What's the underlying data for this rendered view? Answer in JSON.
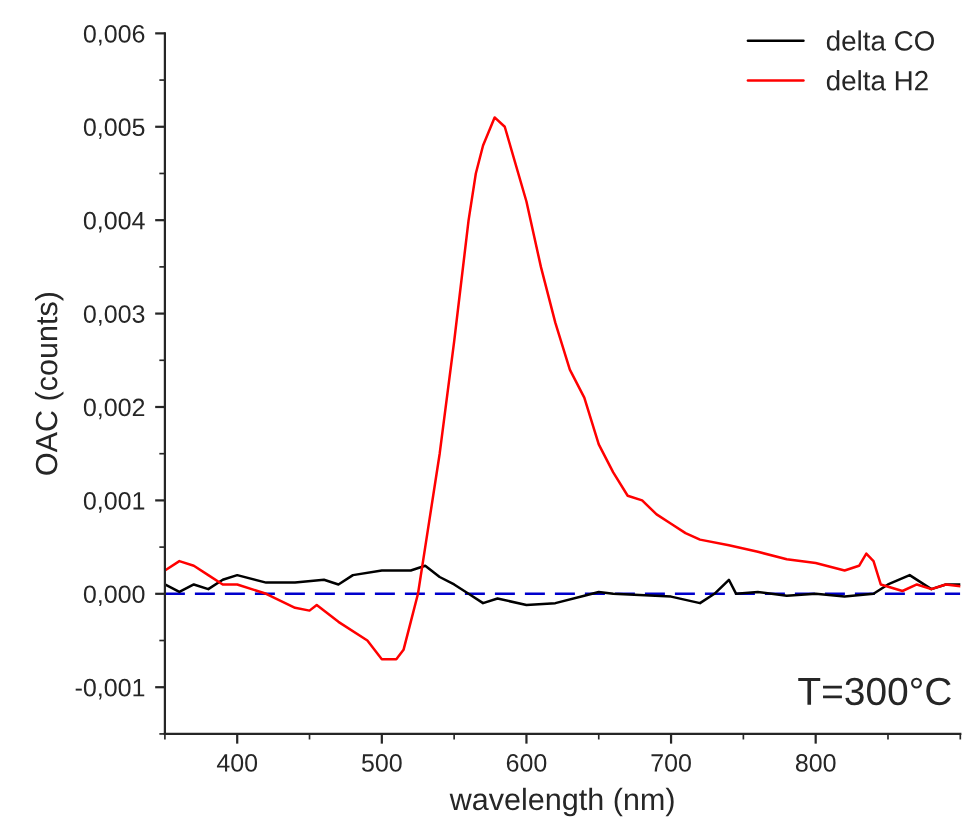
{
  "chart_data": {
    "type": "line",
    "xlabel": "wavelength (nm)",
    "ylabel": "OAC (counts)",
    "xlim": [
      350,
      900
    ],
    "xticks": [
      400,
      500,
      600,
      700,
      800
    ],
    "ylim": [
      -0.0015,
      0.006
    ],
    "yticks": [
      {
        "value": -0.001,
        "label": "-0,001"
      },
      {
        "value": 0,
        "label": "0,000"
      },
      {
        "value": 0.001,
        "label": "0,001"
      },
      {
        "value": 0.002,
        "label": "0,002"
      },
      {
        "value": 0.003,
        "label": "0,003"
      },
      {
        "value": 0.004,
        "label": "0,004"
      },
      {
        "value": 0.005,
        "label": "0,005"
      },
      {
        "value": 0.006,
        "label": "0,006"
      }
    ],
    "grid": false,
    "legend": "top right",
    "line_style": "solid",
    "marker": "none",
    "ref_lines": [
      {
        "axis": "y",
        "value": 0,
        "color": "#0000cc",
        "line_style": "dashed"
      }
    ],
    "annotations": [
      "T=300°C"
    ],
    "series": [
      {
        "name": "delta CO",
        "color": "#000000",
        "x": [
          350,
          360,
          370,
          380,
          390,
          400,
          420,
          440,
          460,
          470,
          480,
          500,
          520,
          530,
          540,
          550,
          560,
          570,
          580,
          600,
          620,
          640,
          650,
          660,
          700,
          720,
          730,
          740,
          745,
          760,
          780,
          800,
          820,
          840,
          850,
          865,
          880,
          890,
          900
        ],
        "values": [
          0.0001,
          2e-05,
          0.0001,
          5e-05,
          0.00015,
          0.0002,
          0.00012,
          0.00012,
          0.00015,
          0.0001,
          0.0002,
          0.00025,
          0.00025,
          0.0003,
          0.00018,
          0.0001,
          0.0,
          -0.0001,
          -5e-05,
          -0.00012,
          -0.0001,
          -2e-05,
          2e-05,
          0.0,
          -3e-05,
          -0.0001,
          0.0,
          0.00015,
          0.0,
          2e-05,
          -2e-05,
          0.0,
          -3e-05,
          0.0,
          0.0001,
          0.0002,
          5e-05,
          0.0001,
          0.0001
        ]
      },
      {
        "name": "delta H2",
        "color": "#ff0000",
        "x": [
          350,
          360,
          370,
          380,
          390,
          400,
          420,
          440,
          450,
          455,
          470,
          490,
          500,
          510,
          515,
          520,
          525,
          530,
          540,
          550,
          560,
          565,
          570,
          578,
          585,
          600,
          610,
          620,
          630,
          640,
          650,
          660,
          670,
          680,
          690,
          700,
          710,
          720,
          740,
          760,
          780,
          800,
          820,
          830,
          835,
          840,
          845,
          860,
          870,
          880,
          890,
          900
        ],
        "values": [
          0.00025,
          0.00035,
          0.0003,
          0.0002,
          0.0001,
          0.0001,
          0.0,
          -0.00015,
          -0.00018,
          -0.00012,
          -0.0003,
          -0.0005,
          -0.0007,
          -0.0007,
          -0.0006,
          -0.0003,
          0.0,
          0.0005,
          0.0015,
          0.0027,
          0.004,
          0.0045,
          0.0048,
          0.0051,
          0.005,
          0.0042,
          0.0035,
          0.0029,
          0.0024,
          0.0021,
          0.0016,
          0.0013,
          0.00105,
          0.001,
          0.00085,
          0.00075,
          0.00065,
          0.00058,
          0.00052,
          0.00045,
          0.00037,
          0.00033,
          0.00025,
          0.0003,
          0.00043,
          0.00035,
          0.0001,
          3e-05,
          0.0001,
          5e-05,
          0.0001,
          8e-05
        ]
      }
    ]
  }
}
